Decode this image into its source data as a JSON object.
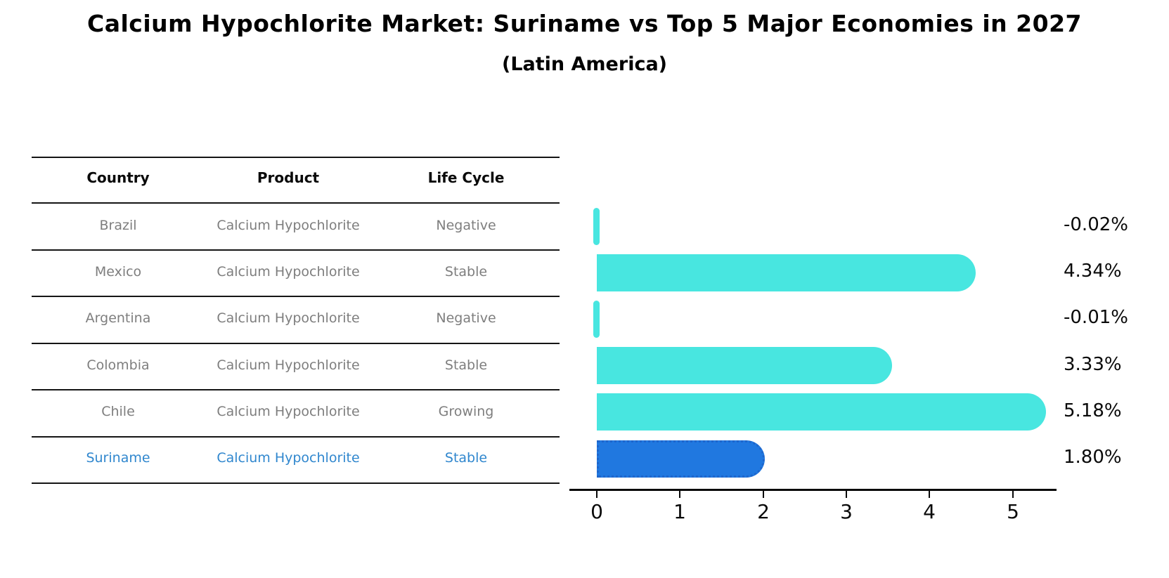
{
  "title": "Calcium Hypochlorite Market: Suriname vs Top 5 Major Economies in 2027",
  "subtitle": "(Latin America)",
  "table": {
    "headers": [
      "Country",
      "Product",
      "Life Cycle"
    ],
    "rows": [
      {
        "country": "Brazil",
        "product": "Calcium Hypochlorite",
        "life_cycle": "Negative",
        "highlighted": false
      },
      {
        "country": "Mexico",
        "product": "Calcium Hypochlorite",
        "life_cycle": "Stable",
        "highlighted": false
      },
      {
        "country": "Argentina",
        "product": "Calcium Hypochlorite",
        "life_cycle": "Negative",
        "highlighted": false
      },
      {
        "country": "Colombia",
        "product": "Calcium Hypochlorite",
        "life_cycle": "Stable",
        "highlighted": false
      },
      {
        "country": "Chile",
        "product": "Calcium Hypochlorite",
        "life_cycle": "Growing",
        "highlighted": false
      },
      {
        "country": "Suriname",
        "product": "Calcium Hypochlorite",
        "life_cycle": "Stable",
        "highlighted": true
      }
    ]
  },
  "chart_data": {
    "type": "bar",
    "orientation": "horizontal",
    "title": "Calcium Hypochlorite Market: Suriname vs Top 5 Major Economies in 2027",
    "subtitle": "(Latin America)",
    "categories": [
      "Brazil",
      "Mexico",
      "Argentina",
      "Colombia",
      "Chile",
      "Suriname"
    ],
    "values": [
      -0.02,
      4.34,
      -0.01,
      3.33,
      5.18,
      1.8
    ],
    "value_labels": [
      "-0.02%",
      "4.34%",
      "-0.01%",
      "3.33%",
      "5.18%",
      "1.80%"
    ],
    "xticks": [
      "0",
      "1",
      "2",
      "3",
      "4",
      "5"
    ],
    "xlim": [
      -0.33,
      5.53
    ],
    "grid": false,
    "legend": false,
    "bar_color": "#48e6e0",
    "highlight_bar_color": "#2078e0",
    "highlight_border_color": "#1e66cc",
    "highlight_index": 5,
    "highlight_text_color": "#3087ce",
    "axis_color": "#0a0a0a"
  }
}
